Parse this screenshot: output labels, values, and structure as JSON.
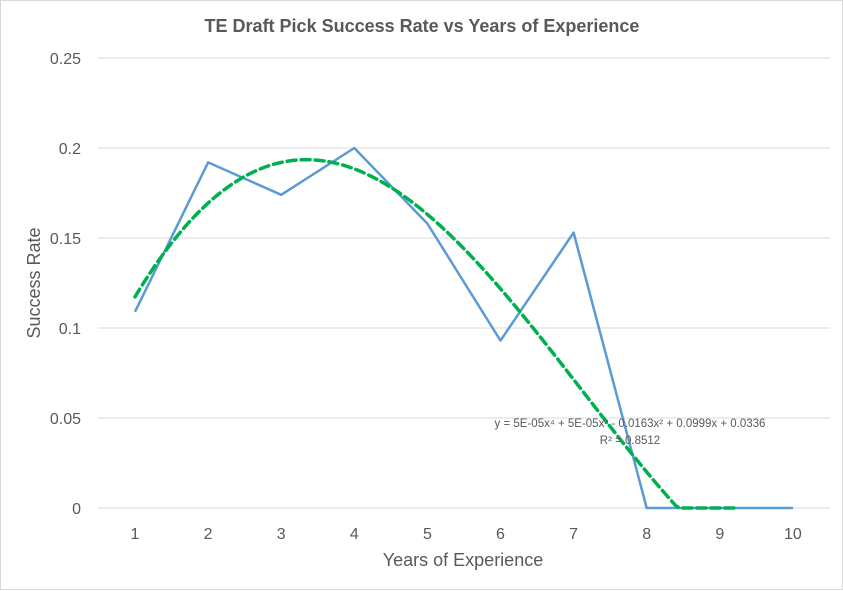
{
  "chart_data": {
    "type": "line",
    "title": "TE Draft Pick Success Rate vs Years of Experience",
    "xlabel": "Years of Experience",
    "ylabel": "Success Rate",
    "x": [
      1,
      2,
      3,
      4,
      5,
      6,
      7,
      8,
      9,
      10
    ],
    "xticks": [
      "1",
      "2",
      "3",
      "4",
      "5",
      "6",
      "7",
      "8",
      "9",
      "10"
    ],
    "ylim": [
      0,
      0.25
    ],
    "yticks": [
      "0",
      "0.05",
      "0.1",
      "0.15",
      "0.2",
      "0.25"
    ],
    "grid": true,
    "series": [
      {
        "values": [
          0.109,
          0.192,
          0.174,
          0.2,
          0.158,
          0.093,
          0.153,
          0.0,
          0.0,
          0.0
        ],
        "color": "#5b9bd5",
        "style": "solid"
      }
    ],
    "trendline": {
      "type": "polynomial",
      "order": 4,
      "color": "#00b050",
      "style": "dashed",
      "coefficients": [
        5e-05,
        5e-05,
        -0.0163,
        0.0999,
        0.0336
      ],
      "x_range": [
        1,
        9.2
      ],
      "equation_label": "y = 5E-05x⁴ + 5E-05x³ - 0.0163x² + 0.0999x + 0.0336",
      "r2_label": "R² = 0.8512"
    }
  }
}
